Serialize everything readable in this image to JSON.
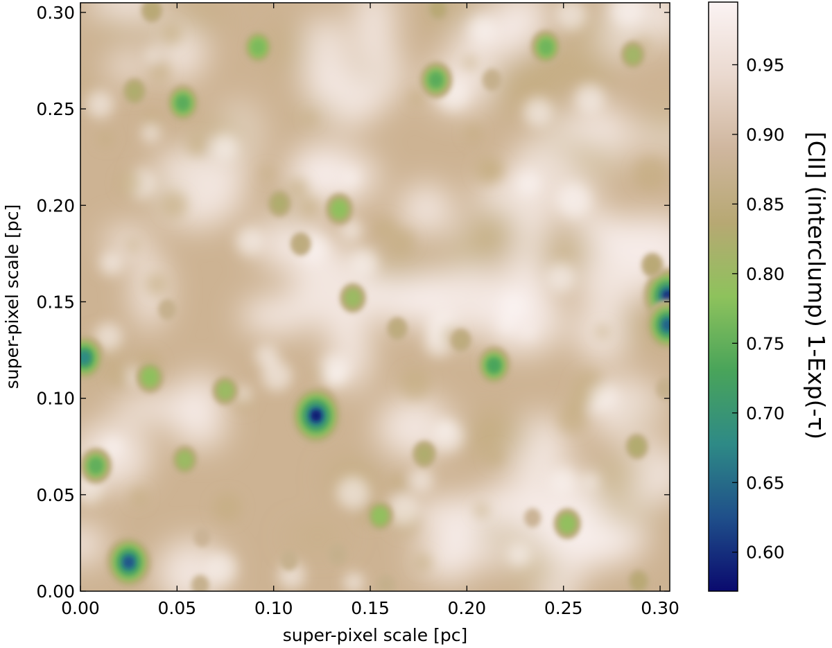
{
  "chart_data": {
    "type": "heatmap",
    "title": "",
    "xlabel": "super-pixel scale [pc]",
    "ylabel": "super-pixel scale [pc]",
    "xlim": [
      0.0,
      0.305
    ],
    "ylim": [
      0.0,
      0.305
    ],
    "x_ticks": [
      "0.00",
      "0.05",
      "0.10",
      "0.15",
      "0.20",
      "0.25",
      "0.30"
    ],
    "y_ticks": [
      "0.00",
      "0.05",
      "0.10",
      "0.15",
      "0.20",
      "0.25",
      "0.30"
    ],
    "colorbar": {
      "label": "[CII] (interclump) 1-Exp(-τ)",
      "range": [
        0.572,
        0.995
      ],
      "ticks": [
        "0.60",
        "0.65",
        "0.70",
        "0.75",
        "0.80",
        "0.85",
        "0.90",
        "0.95"
      ],
      "colormap": [
        "#0a0a6e",
        "#1f4f8a",
        "#2e8a86",
        "#49a45a",
        "#8ec25c",
        "#b7a873",
        "#cfb69e",
        "#ead9cf",
        "#fbf3f3"
      ]
    },
    "low_value_clumps": [
      {
        "x": 0.122,
        "y": 0.091,
        "value": 0.58
      },
      {
        "x": 0.025,
        "y": 0.015,
        "value": 0.63
      },
      {
        "x": 0.304,
        "y": 0.153,
        "value": 0.6
      },
      {
        "x": 0.304,
        "y": 0.138,
        "value": 0.64
      },
      {
        "x": 0.002,
        "y": 0.121,
        "value": 0.68
      },
      {
        "x": 0.053,
        "y": 0.253,
        "value": 0.74
      },
      {
        "x": 0.184,
        "y": 0.265,
        "value": 0.74
      },
      {
        "x": 0.214,
        "y": 0.117,
        "value": 0.73
      },
      {
        "x": 0.008,
        "y": 0.065,
        "value": 0.75
      },
      {
        "x": 0.241,
        "y": 0.282,
        "value": 0.76
      },
      {
        "x": 0.092,
        "y": 0.282,
        "value": 0.77
      },
      {
        "x": 0.134,
        "y": 0.198,
        "value": 0.78
      },
      {
        "x": 0.036,
        "y": 0.111,
        "value": 0.78
      },
      {
        "x": 0.155,
        "y": 0.039,
        "value": 0.79
      },
      {
        "x": 0.252,
        "y": 0.035,
        "value": 0.79
      },
      {
        "x": 0.141,
        "y": 0.152,
        "value": 0.8
      },
      {
        "x": 0.075,
        "y": 0.104,
        "value": 0.8
      },
      {
        "x": 0.054,
        "y": 0.068,
        "value": 0.8
      },
      {
        "x": 0.286,
        "y": 0.278,
        "value": 0.81
      },
      {
        "x": 0.103,
        "y": 0.201,
        "value": 0.82
      },
      {
        "x": 0.028,
        "y": 0.259,
        "value": 0.82
      },
      {
        "x": 0.178,
        "y": 0.071,
        "value": 0.82
      },
      {
        "x": 0.288,
        "y": 0.075,
        "value": 0.83
      },
      {
        "x": 0.296,
        "y": 0.169,
        "value": 0.84
      },
      {
        "x": 0.037,
        "y": 0.301,
        "value": 0.84
      },
      {
        "x": 0.185,
        "y": 0.302,
        "value": 0.84
      },
      {
        "x": 0.289,
        "y": 0.005,
        "value": 0.84
      },
      {
        "x": 0.114,
        "y": 0.18,
        "value": 0.85
      },
      {
        "x": 0.164,
        "y": 0.136,
        "value": 0.85
      },
      {
        "x": 0.197,
        "y": 0.13,
        "value": 0.85
      },
      {
        "x": 0.133,
        "y": 0.019,
        "value": 0.86
      },
      {
        "x": 0.158,
        "y": 0.003,
        "value": 0.86
      },
      {
        "x": 0.108,
        "y": 0.016,
        "value": 0.87
      },
      {
        "x": 0.213,
        "y": 0.265,
        "value": 0.86
      },
      {
        "x": 0.045,
        "y": 0.146,
        "value": 0.87
      },
      {
        "x": 0.303,
        "y": 0.105,
        "value": 0.86
      },
      {
        "x": 0.062,
        "y": 0.003,
        "value": 0.87
      },
      {
        "x": 0.234,
        "y": 0.038,
        "value": 0.88
      },
      {
        "x": 0.063,
        "y": 0.028,
        "value": 0.88
      }
    ]
  }
}
